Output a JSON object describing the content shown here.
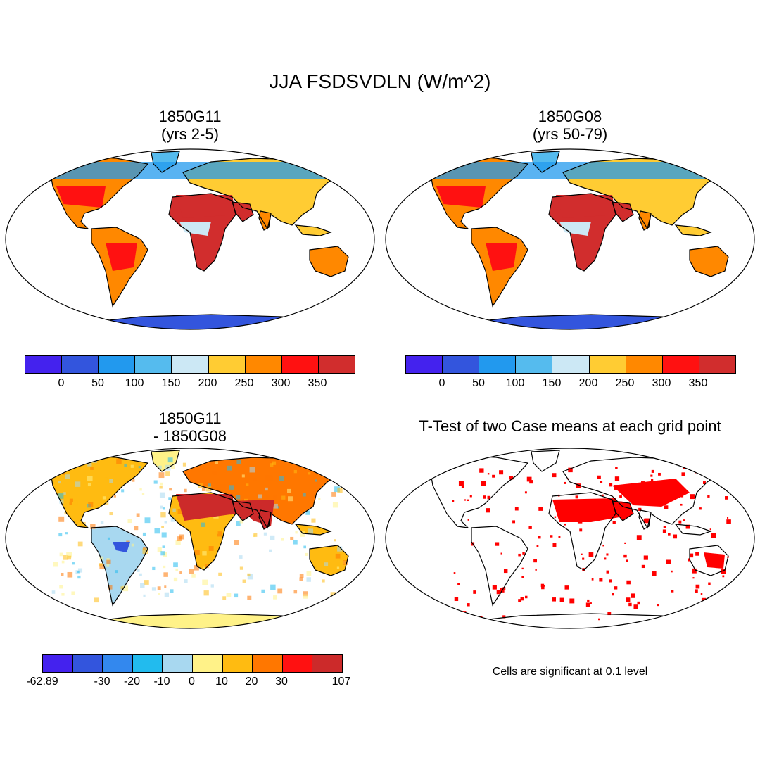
{
  "figure": {
    "title": "JJA FSDSVDLN (W/m^2)"
  },
  "panels": {
    "top_left": {
      "title_line1": "1850G11",
      "title_line2": "(yrs 2-5)"
    },
    "top_right": {
      "title_line1": "1850G08",
      "title_line2": "(yrs 50-79)"
    },
    "bottom_left": {
      "title_line1": "1850G11",
      "title_line2": "- 1850G08"
    },
    "bottom_right": {
      "title": "T-Test of two Case means at each grid point",
      "note": "Cells are significant at 0.1 level"
    }
  },
  "colorbars": {
    "absolute": {
      "colors": [
        "#4422ee",
        "#3355dd",
        "#2299ee",
        "#55bbee",
        "#cce8f5",
        "#ffcc33",
        "#ff8800",
        "#ff1111",
        "#d12d2d"
      ],
      "labels": [
        "0",
        "50",
        "100",
        "150",
        "200",
        "250",
        "300",
        "350"
      ]
    },
    "difference": {
      "colors": [
        "#4422ee",
        "#3355dd",
        "#3388ee",
        "#22bbee",
        "#a8d8f0",
        "#fff288",
        "#ffbb11",
        "#ff7700",
        "#ff1111",
        "#cc2a2a"
      ],
      "labels": [
        "-62.89",
        "-30",
        "-20",
        "-10",
        "0",
        "10",
        "20",
        "30",
        "107"
      ]
    }
  },
  "palette": {
    "ocean": "#ffffff",
    "coastline": "#000000",
    "antarctica": "#3355dd",
    "significant": "#ff0000",
    "diff_antarctica": "#fff288"
  }
}
